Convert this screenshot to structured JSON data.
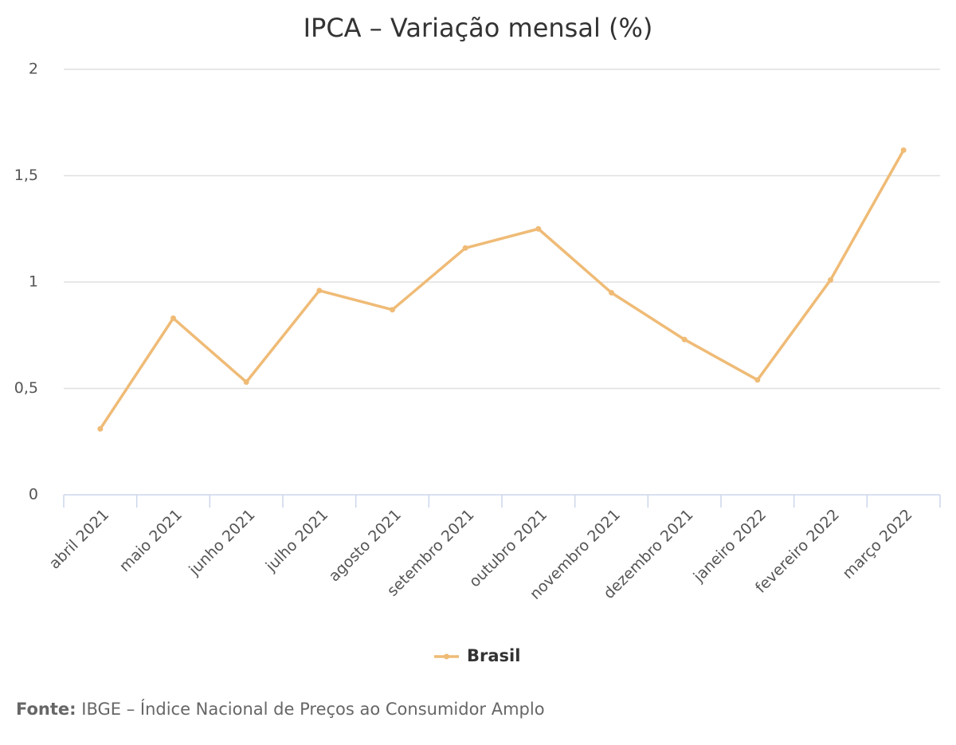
{
  "chart_data": {
    "type": "line",
    "title": "IPCA – Variação mensal (%)",
    "categories": [
      "abril 2021",
      "maio 2021",
      "junho 2021",
      "julho 2021",
      "agosto 2021",
      "setembro 2021",
      "outubro 2021",
      "novembro 2021",
      "dezembro 2021",
      "janeiro 2022",
      "fevereiro 2022",
      "março 2022"
    ],
    "series": [
      {
        "name": "Brasil",
        "color": "#efbb76",
        "values": [
          0.31,
          0.83,
          0.53,
          0.96,
          0.87,
          1.16,
          1.25,
          0.95,
          0.73,
          0.54,
          1.01,
          1.62
        ]
      }
    ],
    "ylim": [
      0,
      2
    ],
    "yticks": [
      0,
      {
        "value": 0.5,
        "label": "0,5"
      },
      1,
      {
        "value": 1.5,
        "label": "1,5"
      },
      2
    ],
    "grid": true,
    "legend": "bottom",
    "source_label": "Fonte:",
    "source": "IBGE – Índice Nacional de Preços ao Consumidor Amplo"
  }
}
